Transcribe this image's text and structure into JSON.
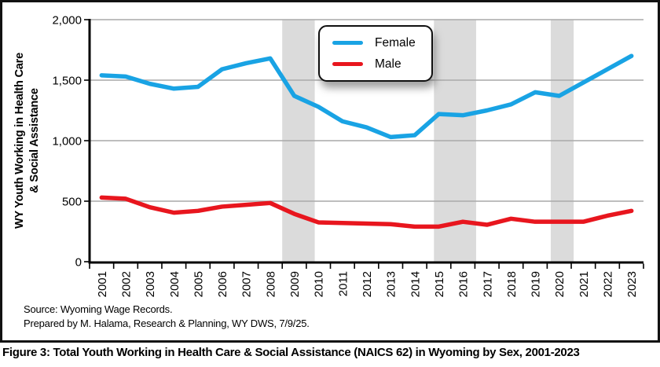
{
  "chart": {
    "y_axis_title_line1": "WY Youth Working in Health Care",
    "y_axis_title_line2": "& Social Assistance"
  },
  "chart_data": {
    "type": "line",
    "categories": [
      "2001",
      "2002",
      "2003",
      "2004",
      "2005",
      "2006",
      "2007",
      "2008",
      "2009",
      "2010",
      "2011",
      "2012",
      "2013",
      "2014",
      "2015",
      "2016",
      "2017",
      "2018",
      "2019",
      "2020",
      "2021",
      "2022",
      "2023"
    ],
    "series": [
      {
        "name": "Female",
        "color": "#19A3E4",
        "values": [
          1540,
          1530,
          1470,
          1430,
          1445,
          1590,
          1640,
          1680,
          1370,
          1280,
          1160,
          1110,
          1030,
          1045,
          1220,
          1210,
          1250,
          1300,
          1400,
          1370,
          1480,
          1590,
          1700
        ]
      },
      {
        "name": "Male",
        "color": "#E8161E",
        "values": [
          530,
          520,
          450,
          405,
          420,
          455,
          470,
          485,
          395,
          325,
          320,
          315,
          310,
          290,
          290,
          330,
          305,
          355,
          330,
          330,
          330,
          380,
          420
        ]
      }
    ],
    "ylabel": "WY Youth Working in Health Care & Social Assistance",
    "xlabel": "",
    "ylim": [
      0,
      2000
    ],
    "yticks": [
      {
        "value": 0,
        "label": "0"
      },
      {
        "value": 500,
        "label": "500"
      },
      {
        "value": 1000,
        "label": "1,000"
      },
      {
        "value": 1500,
        "label": "1,500"
      },
      {
        "value": 2000,
        "label": "2,000"
      }
    ],
    "grid": true,
    "legend_position": "top-center-inside",
    "recession_bands_cell_units": [
      [
        8.0,
        9.35
      ],
      [
        14.3,
        16.05
      ],
      [
        19.15,
        20.1
      ]
    ],
    "band_color": "#DBDBDB",
    "gridline_color": "#A9A9A9",
    "axis_color": "#000000",
    "line_width": 5.5
  },
  "legend": {
    "items": [
      {
        "label": "Female",
        "color": "#19A3E4"
      },
      {
        "label": "Male",
        "color": "#E8161E"
      }
    ]
  },
  "source": {
    "line1": "Source: Wyoming Wage Records.",
    "line2": "Prepared by M. Halama, Research & Planning, WY DWS, 7/9/25."
  },
  "caption": "Figure 3: Total Youth Working in Health Care & Social Assistance (NAICS 62) in Wyoming by Sex, 2001-2023"
}
